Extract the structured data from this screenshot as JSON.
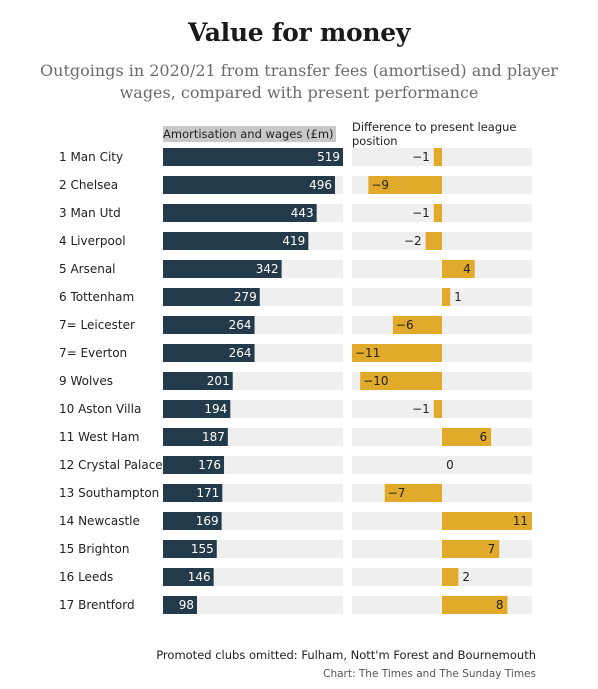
{
  "chart_data": {
    "type": "bar",
    "title": "Value for money",
    "subtitle": "Outgoings in 2020/21 from transfer fees (amortised) and player wages, compared with present performance",
    "left_header": "Amortisation and wages (£m)",
    "right_header": "Difference to present league position",
    "footnote": "Promoted clubs omitted: Fulham, Nott'm Forest and Bournemouth",
    "credit": "Chart: The Times and The Sunday Times",
    "categories": [
      "1 Man City",
      "2 Chelsea",
      "3 Man Utd",
      "4 Liverpool",
      "5 Arsenal",
      "6 Tottenham",
      "7= Leicester",
      "7= Everton",
      "9 Wolves",
      "10 Aston Villa",
      "11 West Ham",
      "12 Crystal Palace",
      "13 Southampton",
      "14 Newcastle",
      "15 Brighton",
      "16 Leeds",
      "17 Brentford"
    ],
    "series": [
      {
        "name": "Amortisation and wages (£m)",
        "values": [
          519,
          496,
          443,
          419,
          342,
          279,
          264,
          264,
          201,
          194,
          187,
          176,
          171,
          169,
          155,
          146,
          98
        ],
        "color": "#233a4a",
        "xlim": [
          0,
          519
        ]
      },
      {
        "name": "Difference to present league position",
        "values": [
          -1,
          -9,
          -1,
          -2,
          4,
          1,
          -6,
          -11,
          -10,
          -1,
          6,
          0,
          -7,
          11,
          7,
          2,
          8
        ],
        "labels": [
          "−1",
          "−9",
          "−1",
          "−2",
          "4",
          "1",
          "−6",
          "−11",
          "−10",
          "−1",
          "6",
          "0",
          "−7",
          "11",
          "7",
          "2",
          "8"
        ],
        "color": "#e2aa2b",
        "xlim": [
          -11,
          11
        ]
      }
    ],
    "track_color": "#efefef"
  }
}
